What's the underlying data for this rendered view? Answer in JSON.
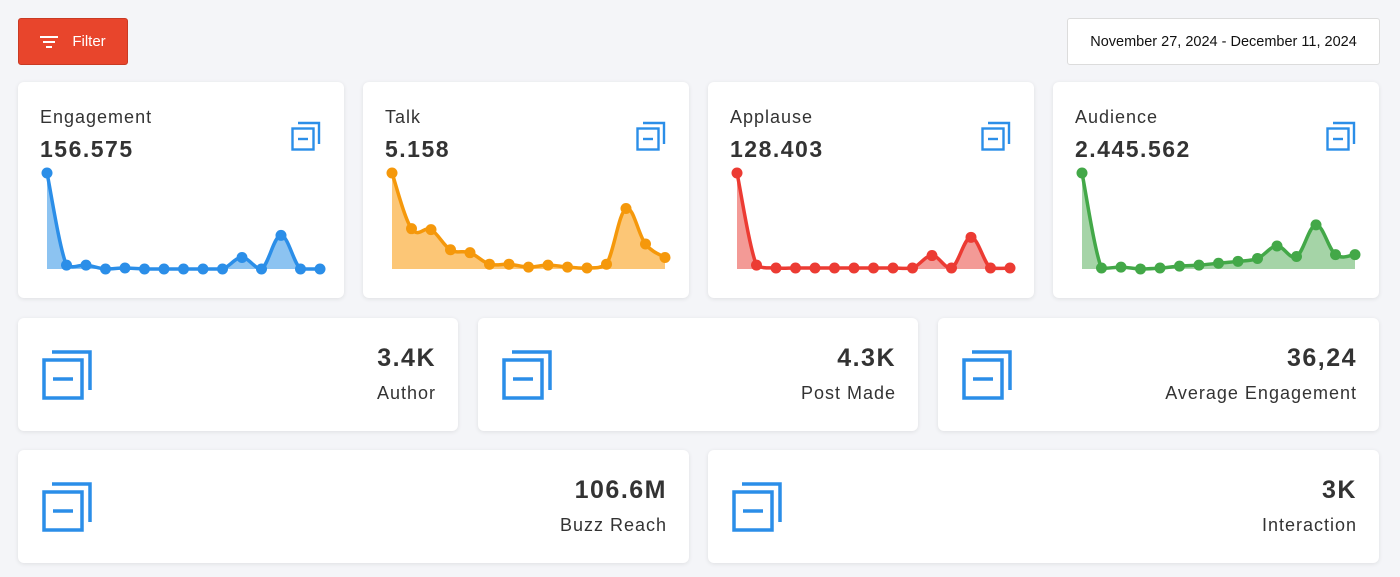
{
  "toolbar": {
    "filter_label": "Filter",
    "date_range": "November 27, 2024 - December 11, 2024"
  },
  "colors": {
    "accent_filter": "#e8452c",
    "icon_blue": "#2b8ee8"
  },
  "icons": {
    "filter": "filter-lines-icon",
    "kpi": "copy-minus-icon"
  },
  "kpi_cards": [
    {
      "label": "Engagement",
      "value": "156.575",
      "color": "#2b8ee8",
      "fill": "#8cc3f1",
      "chart_data": {
        "type": "area",
        "values": [
          100,
          4,
          4,
          0,
          1,
          0,
          0,
          0,
          0,
          0,
          12,
          0,
          35,
          0,
          0
        ]
      }
    },
    {
      "label": "Talk",
      "value": "5.158",
      "color": "#f5980b",
      "fill": "#fcc676",
      "chart_data": {
        "type": "area",
        "values": [
          100,
          42,
          41,
          20,
          17,
          5,
          5,
          2,
          4,
          2,
          1,
          5,
          63,
          26,
          12
        ]
      }
    },
    {
      "label": "Applause",
      "value": "128.403",
      "color": "#ec3b33",
      "fill": "#f39a96",
      "chart_data": {
        "type": "area",
        "values": [
          100,
          4,
          1,
          1,
          1,
          1,
          1,
          1,
          1,
          1,
          14,
          1,
          33,
          1,
          1
        ]
      }
    },
    {
      "label": "Audience",
      "value": "2.445.562",
      "color": "#43a848",
      "fill": "#a5d4a7",
      "chart_data": {
        "type": "area",
        "values": [
          100,
          1,
          2,
          0,
          1,
          3,
          4,
          6,
          8,
          11,
          24,
          13,
          46,
          15,
          15
        ]
      }
    }
  ],
  "stats": [
    {
      "label": "Author",
      "value": "3.4K"
    },
    {
      "label": "Post Made",
      "value": "4.3K"
    },
    {
      "label": "Average Engagement",
      "value": "36,24"
    },
    {
      "label": "Buzz Reach",
      "value": "106.6M"
    },
    {
      "label": "Interaction",
      "value": "3K"
    }
  ]
}
